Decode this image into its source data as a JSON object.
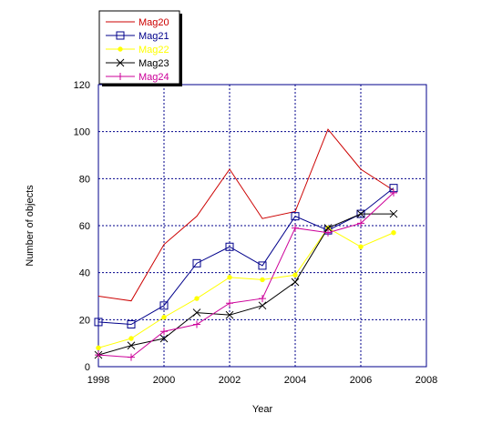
{
  "chart_data": {
    "type": "line",
    "xlabel": "Year",
    "ylabel": "Number of objects",
    "xlim": [
      1998,
      2008
    ],
    "ylim": [
      0,
      120
    ],
    "x_ticks": [
      "1998",
      "2000",
      "2002",
      "2004",
      "2006",
      "2008"
    ],
    "y_ticks": [
      "0",
      "20",
      "40",
      "60",
      "80",
      "100",
      "120"
    ],
    "grid": true,
    "legend_position": "top-left",
    "x": [
      1998,
      1999,
      2000,
      2001,
      2002,
      2003,
      2004,
      2005,
      2006,
      2007
    ],
    "series": [
      {
        "name": "Mag20",
        "color": "#cc0000",
        "marker": "none",
        "values": [
          30,
          28,
          52,
          64,
          84,
          63,
          66,
          101,
          84,
          75
        ]
      },
      {
        "name": "Mag21",
        "color": "#00008b",
        "marker": "square",
        "values": [
          19,
          18,
          26,
          44,
          51,
          43,
          64,
          58,
          65,
          76
        ]
      },
      {
        "name": "Mag22",
        "color": "#ffff00",
        "marker": "circle",
        "values": [
          8,
          12,
          21,
          29,
          38,
          37,
          39,
          59,
          51,
          57
        ]
      },
      {
        "name": "Mag23",
        "color": "#000000",
        "marker": "x",
        "values": [
          5,
          9,
          12,
          23,
          22,
          26,
          36,
          59,
          65,
          65
        ]
      },
      {
        "name": "Mag24",
        "color": "#cc0099",
        "marker": "plus",
        "values": [
          5,
          4,
          15,
          18,
          27,
          29,
          59,
          57,
          61,
          74
        ]
      }
    ]
  }
}
